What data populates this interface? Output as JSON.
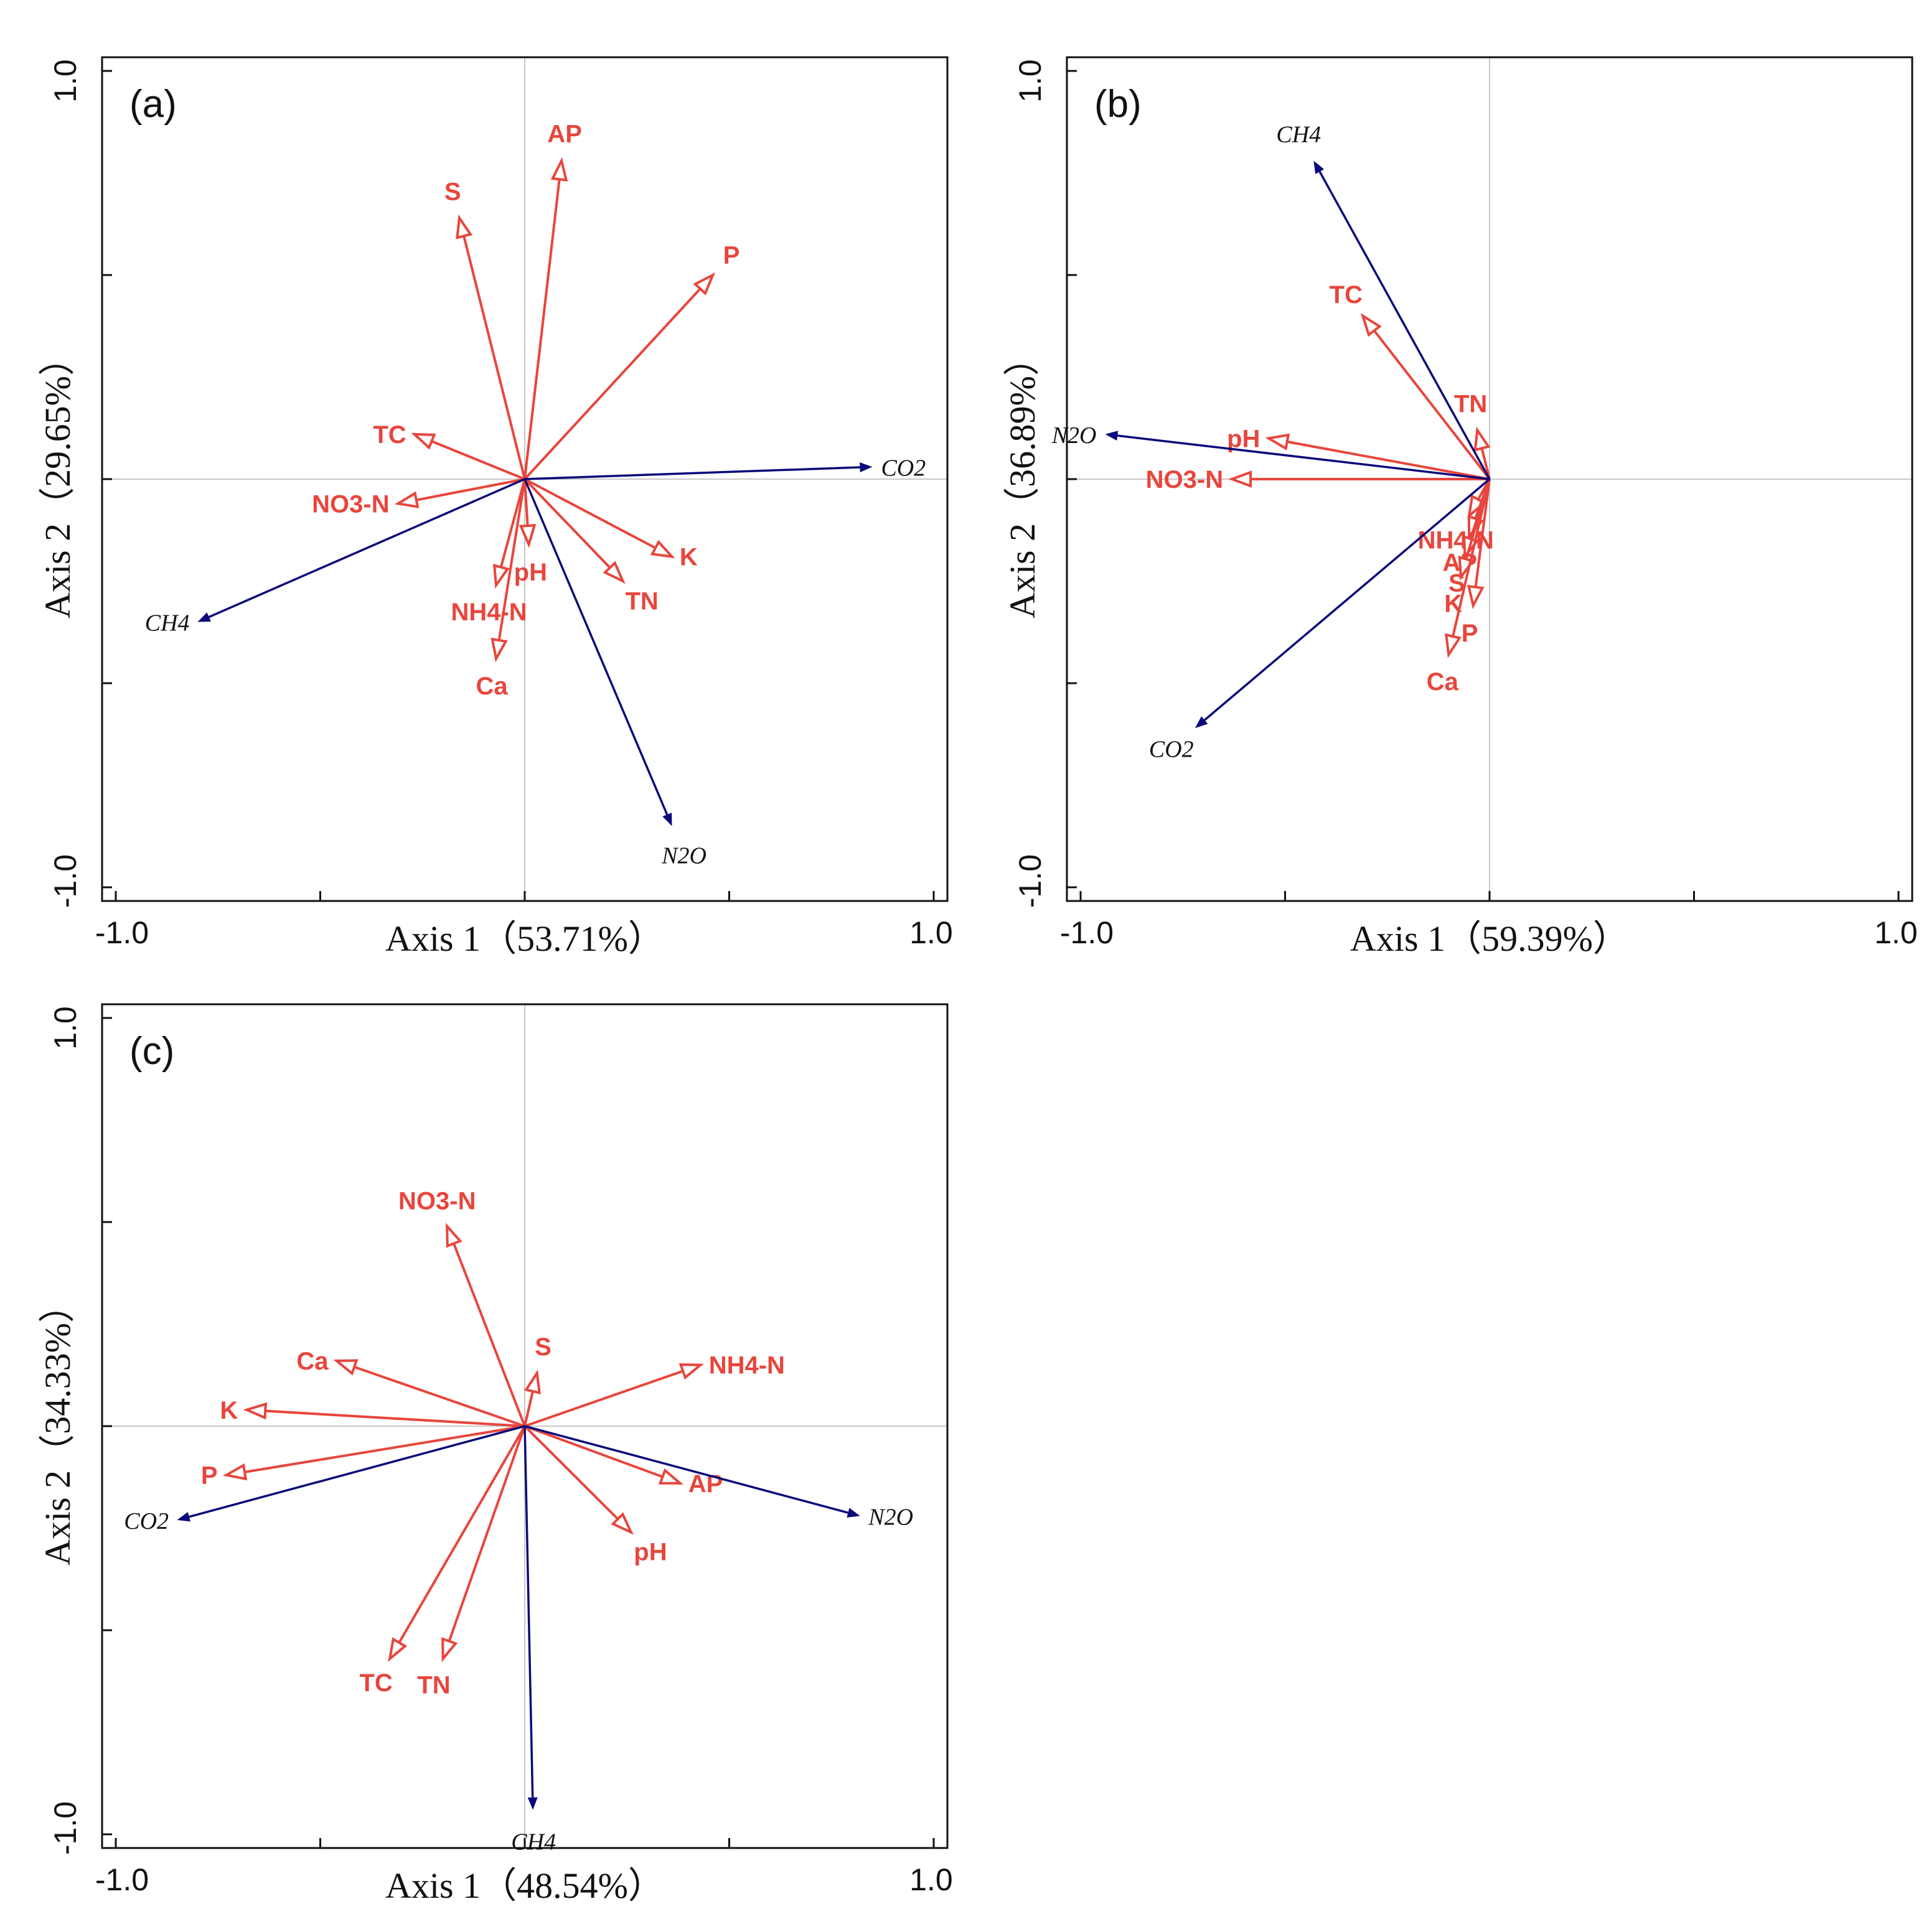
{
  "figure": {
    "colors": {
      "env": "#e8453c",
      "gas": "#0a0a7a",
      "frame": "#111111",
      "grid": "#c8c8c8"
    }
  },
  "chart_data": [
    {
      "type": "scatter",
      "panel_label": "(a)",
      "xlabel": "Axis 1（53.71%）",
      "ylabel": "Axis 2（29.65%）",
      "xlim": [
        -1.0,
        1.0
      ],
      "ylim": [
        -1.0,
        1.0
      ],
      "xtick_labels": [
        "-1.0",
        "1.0"
      ],
      "ytick_labels": [
        "-1.0",
        "1.0"
      ],
      "grid": "zero-lines",
      "environmental_factors": [
        {
          "name": "AP",
          "x": 0.09,
          "y": 0.78
        },
        {
          "name": "S",
          "x": -0.16,
          "y": 0.64
        },
        {
          "name": "P",
          "x": 0.46,
          "y": 0.5
        },
        {
          "name": "TC",
          "x": -0.27,
          "y": 0.11
        },
        {
          "name": "NO3-N",
          "x": -0.31,
          "y": -0.06
        },
        {
          "name": "NH4-N",
          "x": -0.07,
          "y": -0.26
        },
        {
          "name": "pH",
          "x": 0.01,
          "y": -0.16
        },
        {
          "name": "Ca",
          "x": -0.07,
          "y": -0.44
        },
        {
          "name": "TN",
          "x": 0.24,
          "y": -0.25
        },
        {
          "name": "K",
          "x": 0.36,
          "y": -0.19
        }
      ],
      "gas_species": [
        {
          "name": "CO2",
          "x": 0.85,
          "y": 0.03
        },
        {
          "name": "CH4",
          "x": -0.8,
          "y": -0.35
        },
        {
          "name": "N2O",
          "x": 0.36,
          "y": -0.85
        }
      ]
    },
    {
      "type": "scatter",
      "panel_label": "(b)",
      "xlabel": "Axis 1（59.39%）",
      "ylabel": "Axis 2（36.89%）",
      "xlim": [
        -1.0,
        1.0
      ],
      "ylim": [
        -1.0,
        1.0
      ],
      "xtick_labels": [
        "-1.0",
        "1.0"
      ],
      "ytick_labels": [
        "-1.0",
        "1.0"
      ],
      "grid": "zero-lines",
      "environmental_factors": [
        {
          "name": "TC",
          "x": -0.31,
          "y": 0.4
        },
        {
          "name": "TN",
          "x": -0.03,
          "y": 0.12
        },
        {
          "name": "pH",
          "x": -0.54,
          "y": 0.1
        },
        {
          "name": "NO3-N",
          "x": -0.63,
          "y": 0.0
        },
        {
          "name": "NH4-N",
          "x": -0.05,
          "y": -0.09
        },
        {
          "name": "AP",
          "x": -0.05,
          "y": -0.14
        },
        {
          "name": "S",
          "x": -0.06,
          "y": -0.19
        },
        {
          "name": "K",
          "x": -0.07,
          "y": -0.24
        },
        {
          "name": "P",
          "x": -0.04,
          "y": -0.31
        },
        {
          "name": "Ca",
          "x": -0.1,
          "y": -0.43
        }
      ],
      "gas_species": [
        {
          "name": "CH4",
          "x": -0.43,
          "y": 0.78
        },
        {
          "name": "N2O",
          "x": -0.94,
          "y": 0.11
        },
        {
          "name": "CO2",
          "x": -0.72,
          "y": -0.61
        }
      ]
    },
    {
      "type": "scatter",
      "panel_label": "(c)",
      "xlabel": "Axis 1（48.54%）",
      "ylabel": "Axis 2（34.33%）",
      "xlim": [
        -1.0,
        1.0
      ],
      "ylim": [
        -1.0,
        1.0
      ],
      "xtick_labels": [
        "-1.0",
        "1.0"
      ],
      "ytick_labels": [
        "-1.0",
        "1.0"
      ],
      "grid": "zero-lines",
      "environmental_factors": [
        {
          "name": "NO3-N",
          "x": -0.19,
          "y": 0.49
        },
        {
          "name": "S",
          "x": 0.03,
          "y": 0.13
        },
        {
          "name": "NH4-N",
          "x": 0.43,
          "y": 0.15
        },
        {
          "name": "Ca",
          "x": -0.46,
          "y": 0.16
        },
        {
          "name": "K",
          "x": -0.68,
          "y": 0.04
        },
        {
          "name": "P",
          "x": -0.73,
          "y": -0.12
        },
        {
          "name": "AP",
          "x": 0.38,
          "y": -0.14
        },
        {
          "name": "pH",
          "x": 0.26,
          "y": -0.26
        },
        {
          "name": "TC",
          "x": -0.33,
          "y": -0.57
        },
        {
          "name": "TN",
          "x": -0.2,
          "y": -0.57
        }
      ],
      "gas_species": [
        {
          "name": "N2O",
          "x": 0.82,
          "y": -0.22
        },
        {
          "name": "CO2",
          "x": -0.85,
          "y": -0.23
        },
        {
          "name": "CH4",
          "x": 0.02,
          "y": -0.94
        }
      ]
    }
  ]
}
